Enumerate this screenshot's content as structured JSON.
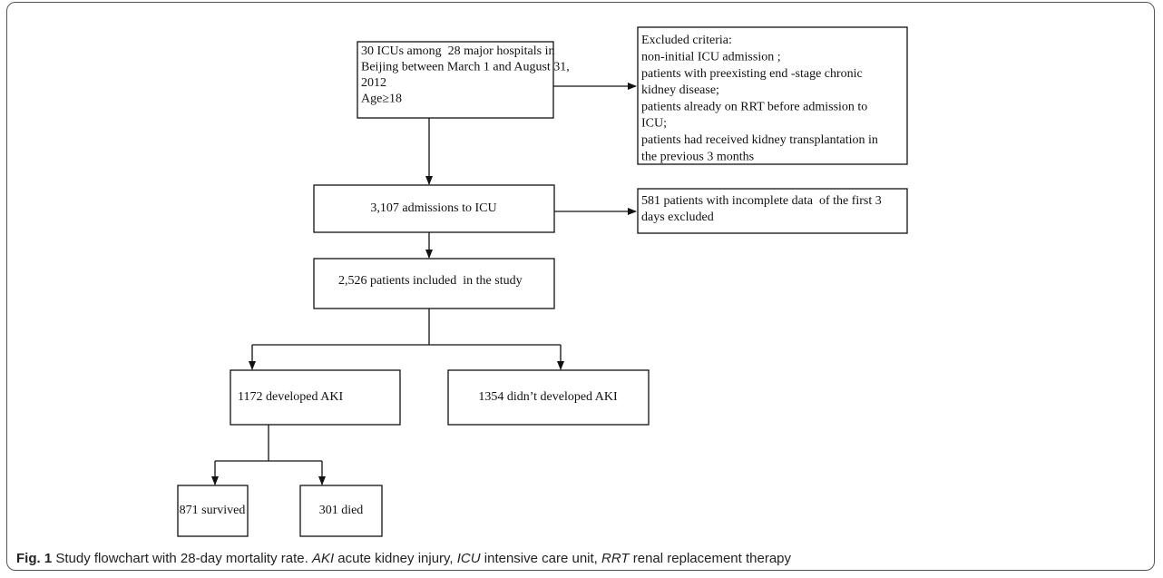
{
  "nodes": [
    {
      "lines": [
        "30 ICUs among  28 major hospitals in",
        "Beijing between March 1 and August 31,",
        "2012",
        "Age≥18"
      ]
    },
    {
      "lines": [
        "Excluded criteria:",
        "non-initial ICU admission ;",
        "patients with preexisting end -stage chronic",
        "kidney disease;",
        "patients already on RRT before admission to",
        "ICU;",
        "patients had received kidney transplantation in",
        "the previous 3 months"
      ]
    },
    {
      "lines": [
        "3,107 admissions to ICU"
      ]
    },
    {
      "lines": [
        "581 patients with incomplete data  of the first 3",
        "days excluded"
      ]
    },
    {
      "lines": [
        "2,526 patients included  in the study"
      ]
    },
    {
      "lines": [
        "1172 developed AKI"
      ]
    },
    {
      "lines": [
        "1354 didn’t developed AKI"
      ]
    },
    {
      "lines": [
        "871 survived"
      ]
    },
    {
      "lines": [
        "301 died"
      ]
    }
  ],
  "caption": [
    {
      "text": "Fig. 1",
      "style": "bold"
    },
    {
      "text": " Study flowchart with 28-day mortality rate. ",
      "style": "normal"
    },
    {
      "text": "AKI",
      "style": "italic"
    },
    {
      "text": " acute kidney injury, ",
      "style": "normal"
    },
    {
      "text": "ICU",
      "style": "italic"
    },
    {
      "text": " intensive care unit, ",
      "style": "normal"
    },
    {
      "text": "RRT",
      "style": "italic"
    },
    {
      "text": " renal replacement therapy",
      "style": "normal"
    }
  ]
}
